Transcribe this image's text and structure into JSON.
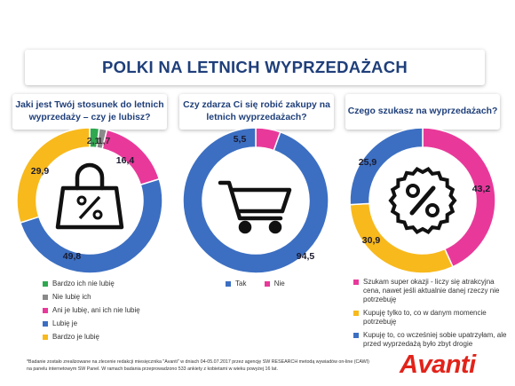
{
  "title": "POLKI NA LETNICH WYPRZEDAŻACH",
  "questions": [
    "Jaki jest Twój stosunek do letnich wyprzedaży – czy je lubisz?",
    "Czy zdarza Ci się robić zakupy na letnich wyprzedażach?",
    "Czego szukasz na wyprzedażach?"
  ],
  "icons": [
    "shopping-bag-percent-icon",
    "shopping-cart-icon",
    "percent-badge-icon"
  ],
  "chart_data": [
    {
      "type": "pie",
      "donut": true,
      "title": "Jaki jest Twój stosunek do letnich wyprzedaży – czy je lubisz?",
      "categories": [
        "Bardzo ich nie lubię",
        "Nie lubię ich",
        "Ani je lubię, ani ich nie lubię",
        "Lubię je",
        "Bardzo je lubię"
      ],
      "values": [
        2.1,
        1.7,
        16.4,
        49.8,
        29.9
      ],
      "labels": [
        "2,1",
        "1,7",
        "16,4",
        "49,8",
        "29,9"
      ],
      "colors": [
        "#2fa84f",
        "#8a8a8a",
        "#e8399a",
        "#3c6fc2",
        "#f8b91c"
      ],
      "legend": "bottom"
    },
    {
      "type": "pie",
      "donut": true,
      "title": "Czy zdarza Ci się robić zakupy na letnich wyprzedażach?",
      "categories": [
        "Tak",
        "Nie"
      ],
      "values": [
        94.5,
        5.5
      ],
      "labels": [
        "94,5",
        "5,5"
      ],
      "colors": [
        "#3c6fc2",
        "#e8399a"
      ],
      "legend": "bottom"
    },
    {
      "type": "pie",
      "donut": true,
      "title": "Czego szukasz na wyprzedażach?",
      "categories": [
        "Szukam super okazji - liczy się atrakcyjna cena, nawet jeśli aktualnie danej rzeczy nie potrzebuję",
        "Kupuję tylko to, co w danym momencie potrzebuję",
        "Kupuję to, co wcześniej sobie upatrzyłam, ale przed wyprzedażą było zbyt drogie"
      ],
      "values": [
        43.2,
        30.9,
        25.9
      ],
      "labels": [
        "43,2",
        "30,9",
        "25,9"
      ],
      "colors": [
        "#e8399a",
        "#f8b91c",
        "#3c6fc2"
      ],
      "legend": "bottom"
    }
  ],
  "footnote": {
    "line1": "*Badanie zostało zrealizowane na zlecenie redakcji miesięcznika \"Avanti\" w dniach 04-05.07.2017 przez agencję SW RESEARCH metodą wywiadów on-line (CAWI)",
    "line2": "na panelu internetowym SW Panel. W ramach badania przeprowadzono 533 ankiety z kobietami w wieku powyżej 16 lat."
  },
  "logo": {
    "word": "Avanti"
  }
}
